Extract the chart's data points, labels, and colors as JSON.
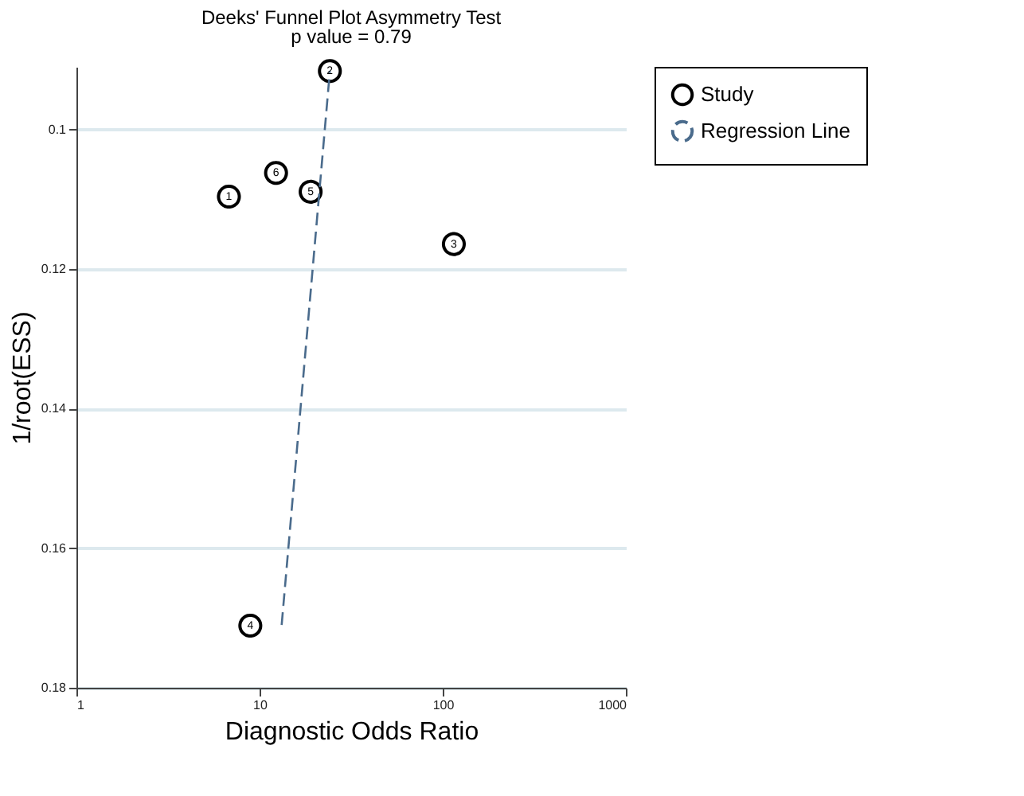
{
  "chart_data": {
    "type": "scatter",
    "title": "Deeks' Funnel Plot Asymmetry Test",
    "subtitle": "p value  =   0.79",
    "xlabel": "Diagnostic Odds Ratio",
    "ylabel": "1/root(ESS)",
    "log": "x",
    "xlim": [
      1,
      1000
    ],
    "xticks": [
      1,
      10,
      100,
      1000
    ],
    "ylim": [
      0.18,
      0.091
    ],
    "yticks": [
      0.1,
      0.12,
      0.14,
      0.16,
      0.18
    ],
    "grid": "y",
    "legend": "top right",
    "series": [
      {
        "name": "Study",
        "marker": "circle",
        "color": "#000000",
        "x": [
          6.8,
          24.2,
          115,
          8.9,
          19.0,
          12.3
        ],
        "values": [
          0.1096,
          0.0916,
          0.1164,
          0.1711,
          0.1089,
          0.1062
        ]
      },
      {
        "name": "Regression Line",
        "type": "line",
        "color": "#4a6b8c",
        "line_style": "dashed",
        "marker": "none",
        "x": [
          13.2,
          24.2
        ],
        "values": [
          0.171,
          0.0916
        ]
      }
    ],
    "annotations": [
      {
        "text": "1",
        "x": 6.8,
        "y": 0.1096
      },
      {
        "text": "2",
        "x": 24.2,
        "y": 0.0916
      },
      {
        "text": "3",
        "x": 115,
        "y": 0.1164
      },
      {
        "text": "4",
        "x": 8.9,
        "y": 0.1711
      },
      {
        "text": "5",
        "x": 19.0,
        "y": 0.1089
      },
      {
        "text": "6",
        "x": 12.3,
        "y": 0.1062
      }
    ]
  }
}
